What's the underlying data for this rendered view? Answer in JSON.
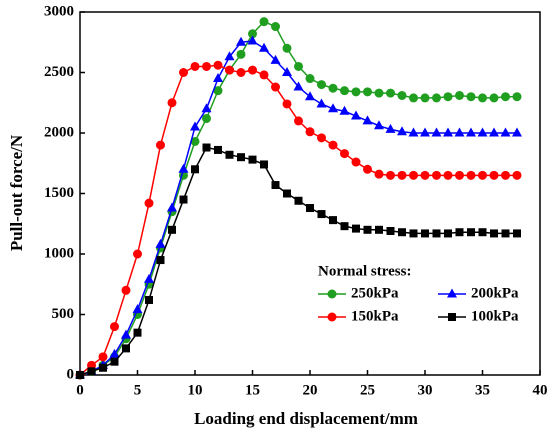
{
  "chart_data": {
    "type": "line",
    "xlabel": "Loading end displacement/mm",
    "ylabel": "Pull-out force/N",
    "legend_title": "Normal stress:",
    "legend": "lower right",
    "x": [
      0,
      1,
      2,
      3,
      4,
      5,
      6,
      7,
      8,
      9,
      10,
      11,
      12,
      13,
      14,
      15,
      16,
      17,
      18,
      19,
      20,
      21,
      22,
      23,
      24,
      25,
      26,
      27,
      28,
      29,
      30,
      31,
      32,
      33,
      34,
      35,
      36,
      37,
      38
    ],
    "series": [
      {
        "name": "250kPa",
        "color": "#1f9e1f",
        "marker": "circle",
        "values": [
          0,
          30,
          80,
          150,
          300,
          500,
          750,
          1050,
          1350,
          1650,
          1930,
          2120,
          2350,
          2520,
          2650,
          2820,
          2920,
          2880,
          2700,
          2550,
          2450,
          2400,
          2370,
          2350,
          2340,
          2340,
          2330,
          2330,
          2310,
          2290,
          2290,
          2290,
          2300,
          2310,
          2300,
          2290,
          2290,
          2300,
          2300
        ]
      },
      {
        "name": "200kPa",
        "color": "#0000ff",
        "marker": "triangle",
        "values": [
          0,
          30,
          80,
          170,
          330,
          540,
          790,
          1080,
          1380,
          1700,
          2050,
          2200,
          2450,
          2630,
          2750,
          2760,
          2700,
          2600,
          2500,
          2380,
          2300,
          2240,
          2200,
          2180,
          2140,
          2100,
          2060,
          2030,
          2010,
          2000,
          2000,
          2000,
          2000,
          2000,
          2000,
          2000,
          2000,
          2000,
          2000
        ]
      },
      {
        "name": "150kPa",
        "color": "#ff0000",
        "marker": "circle",
        "values": [
          0,
          80,
          150,
          400,
          700,
          1000,
          1420,
          1900,
          2250,
          2500,
          2550,
          2550,
          2560,
          2520,
          2500,
          2520,
          2480,
          2380,
          2240,
          2100,
          2010,
          1960,
          1900,
          1830,
          1760,
          1700,
          1660,
          1650,
          1650,
          1650,
          1650,
          1650,
          1650,
          1650,
          1650,
          1650,
          1650,
          1650,
          1650
        ]
      },
      {
        "name": "100kPa",
        "color": "#000000",
        "marker": "square",
        "values": [
          0,
          30,
          60,
          110,
          220,
          350,
          620,
          950,
          1200,
          1450,
          1700,
          1880,
          1860,
          1820,
          1800,
          1780,
          1740,
          1570,
          1500,
          1440,
          1380,
          1330,
          1280,
          1230,
          1210,
          1200,
          1200,
          1190,
          1180,
          1170,
          1170,
          1170,
          1170,
          1180,
          1180,
          1180,
          1170,
          1170,
          1170
        ]
      }
    ],
    "xlim": [
      0,
      40
    ],
    "xticks": [
      0,
      5,
      10,
      15,
      20,
      25,
      30,
      35,
      40
    ],
    "ylim": [
      0,
      3000
    ],
    "yticks": [
      0,
      500,
      1000,
      1500,
      2000,
      2500,
      3000
    ]
  }
}
